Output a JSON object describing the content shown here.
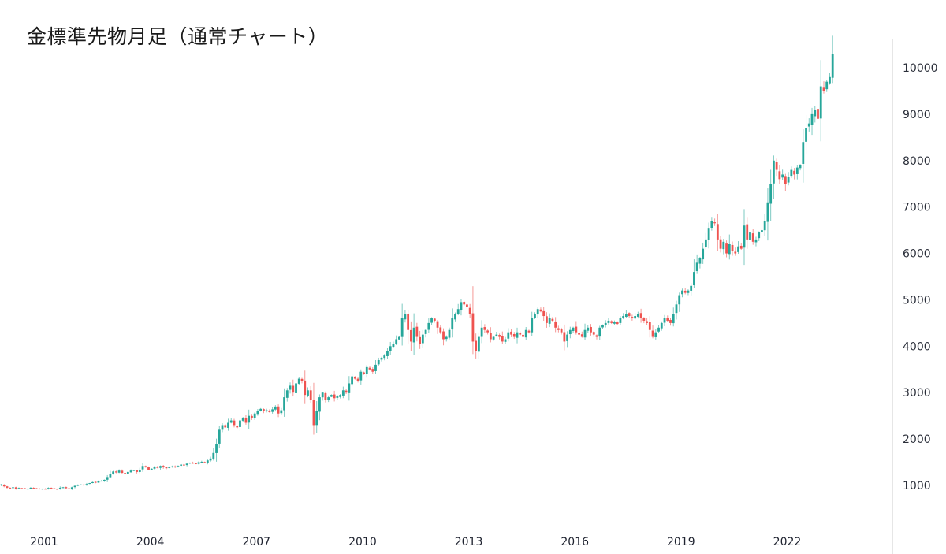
{
  "header": {
    "title": "金標準先物月足（通常チャート）"
  },
  "colors": {
    "up": "#26a69a",
    "down": "#ef5350",
    "axis_line": "#e6e6e6",
    "text": "#2a2e39"
  },
  "chart_data": {
    "type": "candlestick",
    "title": "金標準先物月足（通常チャート）",
    "xlabel": "",
    "ylabel": "",
    "interval": "monthly",
    "y_ticks": [
      1000,
      2000,
      3000,
      4000,
      5000,
      6000,
      7000,
      8000,
      9000,
      10000
    ],
    "x_ticks": [
      "2001",
      "2004",
      "2007",
      "2010",
      "2013",
      "2016",
      "2019",
      "2022"
    ],
    "ylim": [
      0,
      10500
    ],
    "grid": false,
    "legend": null,
    "start": "2000-01",
    "closes": [
      1020,
      980,
      950,
      940,
      960,
      930,
      945,
      935,
      925,
      930,
      950,
      940,
      935,
      920,
      930,
      925,
      945,
      940,
      930,
      920,
      950,
      960,
      940,
      930,
      960,
      990,
      1010,
      1020,
      1000,
      1030,
      1050,
      1070,
      1060,
      1090,
      1100,
      1120,
      1180,
      1250,
      1300,
      1280,
      1320,
      1270,
      1250,
      1290,
      1320,
      1330,
      1290,
      1340,
      1420,
      1390,
      1340,
      1360,
      1400,
      1380,
      1420,
      1390,
      1370,
      1400,
      1410,
      1390,
      1420,
      1450,
      1440,
      1470,
      1490,
      1480,
      1470,
      1500,
      1510,
      1490,
      1540,
      1580,
      1700,
      1900,
      2200,
      2300,
      2250,
      2350,
      2400,
      2300,
      2250,
      2400,
      2450,
      2350,
      2500,
      2450,
      2550,
      2600,
      2650,
      2600,
      2620,
      2580,
      2640,
      2700,
      2550,
      2620,
      2900,
      3050,
      3150,
      3000,
      3200,
      3300,
      3250,
      2950,
      3050,
      2850,
      2300,
      2600,
      2900,
      3000,
      2850,
      2900,
      2950,
      2880,
      2920,
      2950,
      3050,
      3000,
      3200,
      3350,
      3300,
      3250,
      3450,
      3400,
      3550,
      3500,
      3450,
      3600,
      3700,
      3750,
      3800,
      3900,
      4000,
      4050,
      4150,
      4200,
      4600,
      4700,
      4350,
      4100,
      4400,
      4200,
      4050,
      4250,
      4350,
      4500,
      4600,
      4550,
      4400,
      4300,
      4150,
      4200,
      4350,
      4600,
      4700,
      4800,
      4950,
      4900,
      4850,
      4700,
      4100,
      3900,
      4200,
      4400,
      4350,
      4300,
      4150,
      4200,
      4250,
      4200,
      4100,
      4150,
      4300,
      4250,
      4200,
      4300,
      4250,
      4200,
      4350,
      4300,
      4600,
      4700,
      4800,
      4750,
      4650,
      4500,
      4600,
      4550,
      4400,
      4350,
      4300,
      4100,
      4250,
      4350,
      4400,
      4300,
      4250,
      4200,
      4350,
      4400,
      4300,
      4250,
      4200,
      4400,
      4450,
      4500,
      4550,
      4500,
      4520,
      4480,
      4600,
      4650,
      4700,
      4650,
      4600,
      4650,
      4700,
      4600,
      4550,
      4500,
      4350,
      4200,
      4300,
      4400,
      4500,
      4600,
      4550,
      4500,
      4700,
      4900,
      5100,
      5200,
      5150,
      5200,
      5300,
      5600,
      5800,
      5900,
      6100,
      6300,
      6550,
      6700,
      6650,
      6300,
      6100,
      6250,
      6000,
      6200,
      6050,
      6000,
      6150,
      6100,
      6600,
      6300,
      6450,
      6250,
      6300,
      6450,
      6500,
      6700,
      7100,
      7500,
      8000,
      7800,
      7600,
      7700,
      7500,
      7650,
      7800,
      7700,
      7850,
      7900,
      8400,
      8700,
      8800,
      9000,
      9100,
      8900,
      9600,
      9500,
      9700,
      9800,
      10300
    ]
  },
  "axes": {
    "y_labels": [
      "10000",
      "9000",
      "8000",
      "7000",
      "6000",
      "5000",
      "4000",
      "3000",
      "2000",
      "1000"
    ],
    "x_labels": [
      "2001",
      "2004",
      "2007",
      "2010",
      "2013",
      "2016",
      "2019",
      "2022"
    ]
  }
}
